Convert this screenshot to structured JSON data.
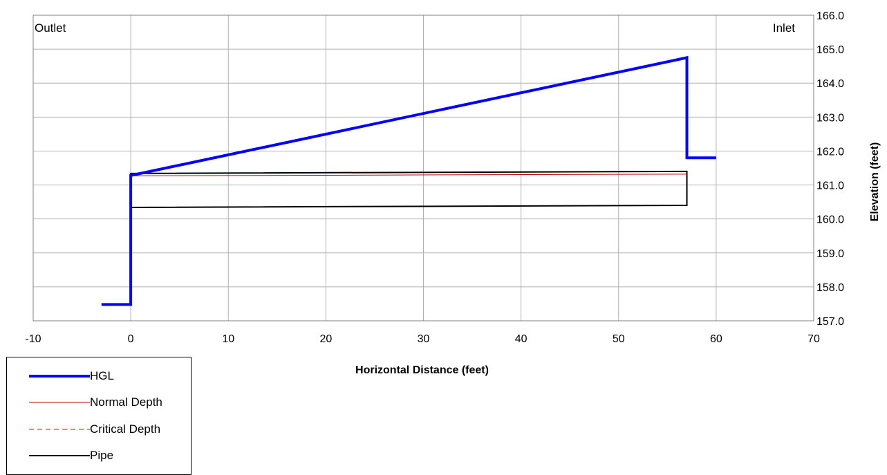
{
  "chart_data": {
    "type": "line",
    "title": "",
    "xlabel": "Horizontal Distance (feet)",
    "ylabel": "Elevation (feet)",
    "xlim": [
      -10,
      70
    ],
    "ylim": [
      157.0,
      166.0
    ],
    "x_ticks": [
      "-10",
      "0",
      "10",
      "20",
      "30",
      "40",
      "50",
      "60",
      "70"
    ],
    "y_ticks": [
      "157.0",
      "158.0",
      "159.0",
      "160.0",
      "161.0",
      "162.0",
      "163.0",
      "164.0",
      "165.0",
      "166.0"
    ],
    "y_axis_side": "right",
    "grid": true,
    "legend_position": "bottom-left",
    "annotations": {
      "left": "Outlet",
      "right": "Inlet"
    },
    "series": [
      {
        "name": "HGL",
        "color": "#0000ff",
        "style": "solid-thick",
        "x": [
          -3,
          0,
          0,
          57,
          57,
          60
        ],
        "y": [
          157.48,
          157.48,
          161.28,
          164.75,
          161.8,
          161.8
        ]
      },
      {
        "name": "Normal Depth",
        "color": "#c00000",
        "style": "solid-thin",
        "x": [
          0,
          57
        ],
        "y": [
          161.27,
          161.32
        ]
      },
      {
        "name": "Critical Depth",
        "color": "#ff0000",
        "style": "dashed",
        "x": [],
        "y": []
      },
      {
        "name": "Pipe",
        "color": "#000000",
        "style": "solid",
        "x": [
          0,
          57,
          57,
          0,
          0
        ],
        "y": [
          160.34,
          160.4,
          161.4,
          161.34,
          160.34
        ]
      }
    ]
  }
}
